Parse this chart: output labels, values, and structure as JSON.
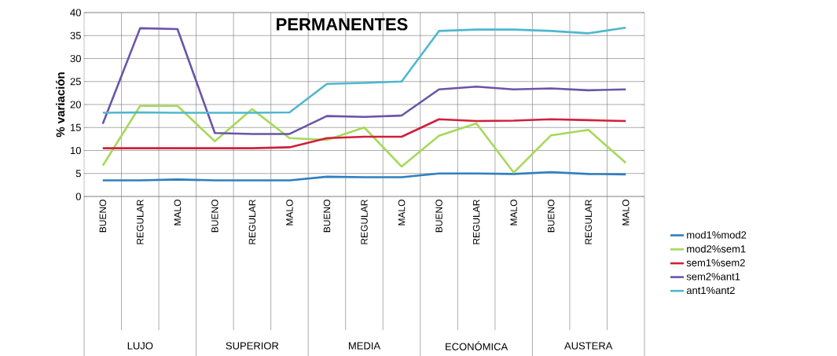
{
  "chart_data": {
    "type": "line",
    "title": "PERMANENTES",
    "ylabel": "% variación",
    "categories": [
      "BUENO",
      "REGULAR",
      "MALO",
      "BUENO",
      "REGULAR",
      "MALO",
      "BUENO",
      "REGULAR",
      "MALO",
      "BUENO",
      "REGULAR",
      "MALO",
      "BUENO",
      "REGULAR",
      "MALO"
    ],
    "annotations": [
      "LUJO",
      "SUPERIOR",
      "MEDIA",
      "ECONÓMICA",
      "AUSTERA"
    ],
    "series": [
      {
        "name": "mod1%mod2",
        "color": "#2e7fbf",
        "values": [
          3.5,
          3.5,
          3.7,
          3.5,
          3.5,
          3.5,
          4.3,
          4.2,
          4.2,
          5,
          5,
          4.9,
          5.3,
          4.9,
          4.8
        ]
      },
      {
        "name": "mod2%sem1",
        "color": "#a6d95a",
        "values": [
          6.7,
          19.7,
          19.7,
          12,
          19,
          12.7,
          12.3,
          15,
          6.5,
          13.2,
          15.9,
          5.2,
          13.3,
          14.5,
          7.3
        ]
      },
      {
        "name": "sem1%sem2",
        "color": "#d0203a",
        "values": [
          10.5,
          10.5,
          10.5,
          10.5,
          10.5,
          10.7,
          12.7,
          13,
          13,
          16.8,
          16.4,
          16.5,
          16.8,
          16.6,
          16.4
        ]
      },
      {
        "name": "sem2%ant1",
        "color": "#6a55a8",
        "values": [
          15.8,
          36.6,
          36.4,
          13.8,
          13.6,
          13.6,
          17.5,
          17.3,
          17.6,
          23.3,
          23.9,
          23.3,
          23.5,
          23.1,
          23.3
        ]
      },
      {
        "name": "ant1%ant2",
        "color": "#4fb7cf",
        "values": [
          18.2,
          18.3,
          18.2,
          18.2,
          18.2,
          18.3,
          24.5,
          24.7,
          25,
          36,
          36.3,
          36.3,
          36,
          35.5,
          36.7
        ]
      }
    ],
    "ylim": [
      0,
      40
    ],
    "yticks": [
      0,
      5,
      10,
      15,
      20,
      25,
      30,
      35,
      40
    ],
    "grid": true,
    "legend": "right",
    "marker": "none",
    "line_style": "solid"
  }
}
